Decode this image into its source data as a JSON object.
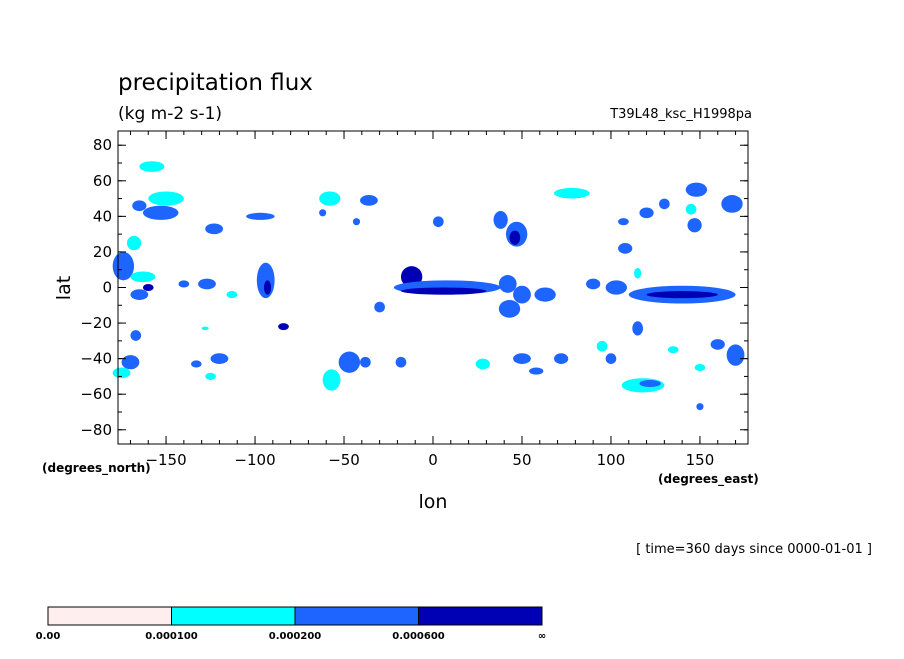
{
  "header": {
    "title": "precipitation flux",
    "units": "(kg m-2 s-1)",
    "run_id": "T39L48_ksc_H1998pa"
  },
  "time_note": "[ time=360 days since 0000-01-01 ]",
  "chart_data": {
    "type": "contour",
    "title": "precipitation flux",
    "subtitle": "(kg m-2 s-1)",
    "xlabel": "lon",
    "ylabel": "lat",
    "x_units": "(degrees_east)",
    "y_units": "(degrees_north)",
    "xlim": [
      -177,
      177
    ],
    "ylim": [
      -88,
      88
    ],
    "x_ticks": [
      -150,
      -100,
      -50,
      0,
      50,
      100,
      150
    ],
    "x_tick_labels": [
      "−150",
      "−100",
      "−50",
      "0",
      "50",
      "100",
      "150"
    ],
    "y_ticks": [
      80,
      60,
      40,
      20,
      0,
      -20,
      -40,
      -60,
      -80
    ],
    "y_tick_labels": [
      "80",
      "60",
      "40",
      "20",
      "0",
      "−20",
      "−40",
      "−60",
      "−80"
    ],
    "levels": [
      0.0,
      0.0001,
      0.0002,
      0.0006
    ],
    "level_labels": [
      "0.00",
      "0.000100",
      "0.000200",
      "0.000600",
      "∞"
    ],
    "colors": [
      "#ffeeee",
      "#00ffff",
      "#1e64ff",
      "#0000b4"
    ],
    "regions": [
      {
        "lon": -158,
        "lat": 68,
        "rx": 7,
        "ry": 3,
        "level": 1
      },
      {
        "lon": -150,
        "lat": 50,
        "rx": 10,
        "ry": 4,
        "level": 1
      },
      {
        "lon": -153,
        "lat": 42,
        "rx": 10,
        "ry": 4,
        "level": 2
      },
      {
        "lon": -165,
        "lat": 46,
        "rx": 4,
        "ry": 3,
        "level": 2
      },
      {
        "lon": -168,
        "lat": 25,
        "rx": 4,
        "ry": 4,
        "level": 1
      },
      {
        "lon": -174,
        "lat": 12,
        "rx": 6,
        "ry": 8,
        "level": 2
      },
      {
        "lon": -163,
        "lat": 6,
        "rx": 7,
        "ry": 3,
        "level": 1
      },
      {
        "lon": -165,
        "lat": -4,
        "rx": 5,
        "ry": 3,
        "level": 2
      },
      {
        "lon": -160,
        "lat": 0,
        "rx": 3,
        "ry": 2,
        "level": 3
      },
      {
        "lon": -167,
        "lat": -27,
        "rx": 3,
        "ry": 3,
        "level": 2
      },
      {
        "lon": -170,
        "lat": -42,
        "rx": 5,
        "ry": 4,
        "level": 2
      },
      {
        "lon": -175,
        "lat": -48,
        "rx": 5,
        "ry": 3,
        "level": 1
      },
      {
        "lon": -123,
        "lat": 33,
        "rx": 5,
        "ry": 3,
        "level": 2
      },
      {
        "lon": -97,
        "lat": 40,
        "rx": 8,
        "ry": 2,
        "level": 2
      },
      {
        "lon": -127,
        "lat": 2,
        "rx": 5,
        "ry": 3,
        "level": 2
      },
      {
        "lon": -140,
        "lat": 2,
        "rx": 3,
        "ry": 2,
        "level": 2
      },
      {
        "lon": -113,
        "lat": -4,
        "rx": 3,
        "ry": 2,
        "level": 1
      },
      {
        "lon": -94,
        "lat": 4,
        "rx": 5,
        "ry": 10,
        "level": 2
      },
      {
        "lon": -93,
        "lat": 0,
        "rx": 2,
        "ry": 4,
        "level": 3
      },
      {
        "lon": -84,
        "lat": -22,
        "rx": 3,
        "ry": 2,
        "level": 3
      },
      {
        "lon": -120,
        "lat": -40,
        "rx": 5,
        "ry": 3,
        "level": 2
      },
      {
        "lon": -133,
        "lat": -43,
        "rx": 3,
        "ry": 2,
        "level": 2
      },
      {
        "lon": -125,
        "lat": -50,
        "rx": 3,
        "ry": 2,
        "level": 1
      },
      {
        "lon": -128,
        "lat": -23,
        "rx": 2,
        "ry": 1,
        "level": 1
      },
      {
        "lon": -58,
        "lat": 50,
        "rx": 6,
        "ry": 4,
        "level": 1
      },
      {
        "lon": -36,
        "lat": 49,
        "rx": 5,
        "ry": 3,
        "level": 2
      },
      {
        "lon": -62,
        "lat": 42,
        "rx": 2,
        "ry": 2,
        "level": 2
      },
      {
        "lon": -43,
        "lat": 37,
        "rx": 2,
        "ry": 2,
        "level": 2
      },
      {
        "lon": -30,
        "lat": -11,
        "rx": 3,
        "ry": 3,
        "level": 2
      },
      {
        "lon": -12,
        "lat": 6,
        "rx": 6,
        "ry": 6,
        "level": 3
      },
      {
        "lon": 8,
        "lat": 0,
        "rx": 30,
        "ry": 4,
        "level": 2
      },
      {
        "lon": 6,
        "lat": -2,
        "rx": 24,
        "ry": 2,
        "level": 3
      },
      {
        "lon": 3,
        "lat": 37,
        "rx": 3,
        "ry": 3,
        "level": 2
      },
      {
        "lon": 38,
        "lat": 38,
        "rx": 4,
        "ry": 5,
        "level": 2
      },
      {
        "lon": 47,
        "lat": 30,
        "rx": 6,
        "ry": 7,
        "level": 2
      },
      {
        "lon": 46,
        "lat": 28,
        "rx": 3,
        "ry": 4,
        "level": 3
      },
      {
        "lon": 42,
        "lat": 2,
        "rx": 5,
        "ry": 5,
        "level": 2
      },
      {
        "lon": 50,
        "lat": -4,
        "rx": 5,
        "ry": 5,
        "level": 2
      },
      {
        "lon": 43,
        "lat": -12,
        "rx": 6,
        "ry": 5,
        "level": 2
      },
      {
        "lon": 63,
        "lat": -4,
        "rx": 6,
        "ry": 4,
        "level": 2
      },
      {
        "lon": -47,
        "lat": -42,
        "rx": 6,
        "ry": 6,
        "level": 2
      },
      {
        "lon": -57,
        "lat": -52,
        "rx": 5,
        "ry": 6,
        "level": 1
      },
      {
        "lon": -38,
        "lat": -42,
        "rx": 3,
        "ry": 3,
        "level": 2
      },
      {
        "lon": -18,
        "lat": -42,
        "rx": 3,
        "ry": 3,
        "level": 2
      },
      {
        "lon": 28,
        "lat": -43,
        "rx": 4,
        "ry": 3,
        "level": 1
      },
      {
        "lon": 50,
        "lat": -40,
        "rx": 5,
        "ry": 3,
        "level": 2
      },
      {
        "lon": 58,
        "lat": -47,
        "rx": 4,
        "ry": 2,
        "level": 2
      },
      {
        "lon": 72,
        "lat": -40,
        "rx": 4,
        "ry": 3,
        "level": 2
      },
      {
        "lon": 78,
        "lat": 53,
        "rx": 10,
        "ry": 3,
        "level": 1
      },
      {
        "lon": 90,
        "lat": 2,
        "rx": 4,
        "ry": 3,
        "level": 2
      },
      {
        "lon": 103,
        "lat": 0,
        "rx": 6,
        "ry": 4,
        "level": 2
      },
      {
        "lon": 108,
        "lat": 22,
        "rx": 4,
        "ry": 3,
        "level": 2
      },
      {
        "lon": 107,
        "lat": 37,
        "rx": 3,
        "ry": 2,
        "level": 2
      },
      {
        "lon": 120,
        "lat": 42,
        "rx": 4,
        "ry": 3,
        "level": 2
      },
      {
        "lon": 130,
        "lat": 47,
        "rx": 3,
        "ry": 3,
        "level": 2
      },
      {
        "lon": 148,
        "lat": 55,
        "rx": 6,
        "ry": 4,
        "level": 2
      },
      {
        "lon": 147,
        "lat": 35,
        "rx": 4,
        "ry": 4,
        "level": 2
      },
      {
        "lon": 168,
        "lat": 47,
        "rx": 6,
        "ry": 5,
        "level": 2
      },
      {
        "lon": 145,
        "lat": 44,
        "rx": 3,
        "ry": 3,
        "level": 1
      },
      {
        "lon": 140,
        "lat": -4,
        "rx": 30,
        "ry": 5,
        "level": 2
      },
      {
        "lon": 140,
        "lat": -4,
        "rx": 20,
        "ry": 2,
        "level": 3
      },
      {
        "lon": 115,
        "lat": -23,
        "rx": 3,
        "ry": 4,
        "level": 2
      },
      {
        "lon": 95,
        "lat": -33,
        "rx": 3,
        "ry": 3,
        "level": 1
      },
      {
        "lon": 100,
        "lat": -40,
        "rx": 3,
        "ry": 3,
        "level": 2
      },
      {
        "lon": 118,
        "lat": -55,
        "rx": 12,
        "ry": 4,
        "level": 1
      },
      {
        "lon": 122,
        "lat": -54,
        "rx": 6,
        "ry": 2,
        "level": 2
      },
      {
        "lon": 160,
        "lat": -32,
        "rx": 4,
        "ry": 3,
        "level": 2
      },
      {
        "lon": 170,
        "lat": -38,
        "rx": 5,
        "ry": 6,
        "level": 2
      },
      {
        "lon": 150,
        "lat": -45,
        "rx": 3,
        "ry": 2,
        "level": 1
      },
      {
        "lon": 150,
        "lat": -67,
        "rx": 2,
        "ry": 2,
        "level": 2
      },
      {
        "lon": 115,
        "lat": 8,
        "rx": 2,
        "ry": 3,
        "level": 1
      },
      {
        "lon": 135,
        "lat": -35,
        "rx": 3,
        "ry": 2,
        "level": 1
      }
    ]
  }
}
